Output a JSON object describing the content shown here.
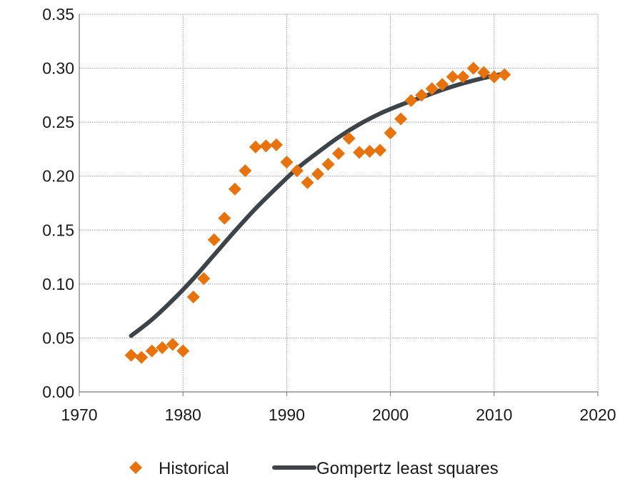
{
  "chart_data": {
    "type": "scatter",
    "title": "",
    "xlabel": "",
    "ylabel": "",
    "xlim": [
      1970,
      2020
    ],
    "ylim": [
      0,
      0.35
    ],
    "x_ticks": [
      "1970",
      "1980",
      "1990",
      "2000",
      "2010",
      "2020"
    ],
    "y_ticks": [
      "0.00",
      "0.05",
      "0.10",
      "0.15",
      "0.20",
      "0.25",
      "0.30",
      "0.35"
    ],
    "grid": "dotted, both axes",
    "legend_position": "bottom",
    "series": [
      {
        "name": "Historical",
        "kind": "scatter",
        "marker": "diamond",
        "color": "#E8720C",
        "x": [
          1975,
          1976,
          1977,
          1978,
          1979,
          1980,
          1981,
          1982,
          1983,
          1984,
          1985,
          1986,
          1987,
          1988,
          1989,
          1990,
          1991,
          1992,
          1993,
          1994,
          1995,
          1996,
          1997,
          1998,
          1999,
          2000,
          2001,
          2002,
          2003,
          2004,
          2005,
          2006,
          2007,
          2008,
          2009,
          2010,
          2011
        ],
        "y": [
          0.034,
          0.032,
          0.038,
          0.041,
          0.044,
          0.038,
          0.088,
          0.105,
          0.141,
          0.161,
          0.188,
          0.205,
          0.227,
          0.228,
          0.229,
          0.213,
          0.205,
          0.194,
          0.202,
          0.211,
          0.221,
          0.235,
          0.222,
          0.223,
          0.224,
          0.24,
          0.253,
          0.27,
          0.275,
          0.281,
          0.285,
          0.292,
          0.292,
          0.3,
          0.296,
          0.292,
          0.294
        ]
      },
      {
        "name": "Gompertz least squares",
        "kind": "line",
        "color": "#3D4449",
        "x": [
          1975,
          1977,
          1979,
          1981,
          1983,
          1985,
          1987,
          1989,
          1991,
          1993,
          1995,
          1997,
          1999,
          2001,
          2003,
          2005,
          2007,
          2009,
          2011
        ],
        "y": [
          0.052,
          0.067,
          0.085,
          0.105,
          0.127,
          0.149,
          0.17,
          0.189,
          0.207,
          0.222,
          0.236,
          0.248,
          0.258,
          0.266,
          0.273,
          0.28,
          0.286,
          0.291,
          0.295
        ]
      }
    ]
  }
}
